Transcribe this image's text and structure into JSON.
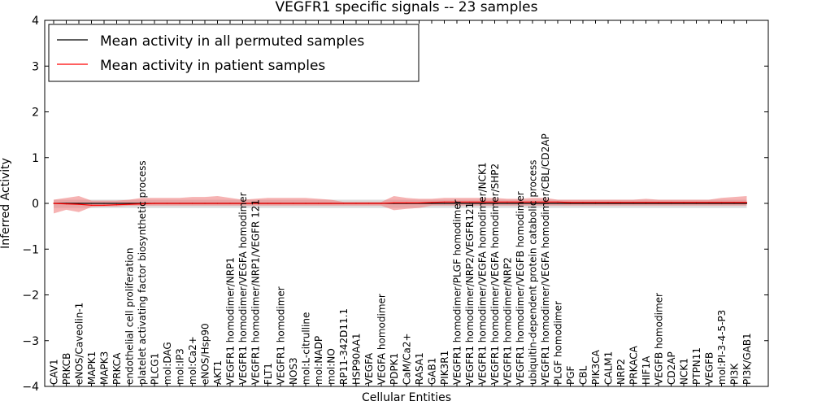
{
  "chart_data": {
    "type": "line",
    "title": "VEGFR1 specific signals -- 23 samples",
    "xlabel": "Cellular Entities",
    "ylabel": "Inferred Activity",
    "ylim": [
      -4,
      4
    ],
    "yticks": [
      -4,
      -3,
      -2,
      -1,
      0,
      1,
      2,
      3,
      4
    ],
    "grid": false,
    "legend_position": "top-left",
    "categories": [
      "CAV1",
      "PRKCB",
      "eNOS/Caveolin-1",
      "MAPK1",
      "MAPK3",
      "PRKCA",
      "endothelial cell proliferation",
      "platelet activating factor biosynthetic process",
      "PLCG1",
      "mol:DAG",
      "mol:IP3",
      "mol:Ca2+",
      "eNOS/Hsp90",
      "AKT1",
      "VEGFR1 homodimer/NRP1",
      "VEGFR1 homodimer/VEGFA homodimer",
      "VEGFR1 homodimer/NRP1/VEGFR 121",
      "FLT1",
      "VEGFR1 homodimer",
      "NOS3",
      "mol:L-citrulline",
      "mol:NADP",
      "mol:NO",
      "RP11-342D11.1",
      "HSP90AA1",
      "VEGFA",
      "VEGFA homodimer",
      "PDPK1",
      "CaM/Ca2+",
      "RASA1",
      "GAB1",
      "PIK3R1",
      "VEGFR1 homodimer/PLGF homodimer",
      "VEGFR1 homodimer/NRP2/VEGFR121",
      "VEGFR1 homodimer/VEGFA homodimer/NCK1",
      "VEGFR1 homodimer/VEGFA homodimer/SHP2",
      "VEGFR1 homodimer/NRP2",
      "VEGFR1 homodimer/VEGFB homodimer",
      "ubiquitin-dependent protein catabolic process",
      "VEGFR1 homodimer/VEGFA homodimer/CBL/CD2AP",
      "PLGF homodimer",
      "PGF",
      "CBL",
      "PIK3CA",
      "CALM1",
      "NRP2",
      "PRKACA",
      "HIF1A",
      "VEGFB homodimer",
      "CD2AP",
      "NCK1",
      "PTPN11",
      "VEGFB",
      "mol:PI-3-4-5-P3",
      "PI3K",
      "PI3K/GAB1"
    ],
    "series": [
      {
        "name": "Mean activity in all permuted samples",
        "color": "#000000",
        "band_color": "#bfbfbf",
        "values": [
          0,
          0,
          0,
          0,
          0,
          0,
          0,
          0,
          0,
          0,
          0,
          0,
          0,
          0,
          0,
          0,
          0,
          0,
          0,
          0,
          0,
          0,
          0,
          0,
          0,
          0,
          0,
          0,
          0,
          0,
          0,
          0,
          0,
          0,
          0,
          0,
          0,
          0,
          0,
          0,
          0,
          0,
          0,
          0,
          0,
          0,
          0,
          0,
          0,
          0,
          0,
          0,
          0,
          0,
          0,
          0
        ],
        "lower": [
          -0.1,
          -0.1,
          -0.1,
          -0.1,
          -0.1,
          -0.1,
          -0.1,
          -0.1,
          -0.1,
          -0.1,
          -0.1,
          -0.1,
          -0.1,
          -0.1,
          -0.1,
          -0.1,
          -0.1,
          -0.1,
          -0.1,
          -0.1,
          -0.1,
          -0.1,
          -0.1,
          -0.1,
          -0.1,
          -0.1,
          -0.1,
          -0.1,
          -0.1,
          -0.1,
          -0.1,
          -0.1,
          -0.1,
          -0.1,
          -0.1,
          -0.1,
          -0.1,
          -0.1,
          -0.1,
          -0.1,
          -0.1,
          -0.1,
          -0.1,
          -0.1,
          -0.1,
          -0.1,
          -0.1,
          -0.1,
          -0.1,
          -0.1,
          -0.1,
          -0.1,
          -0.1,
          -0.1,
          -0.1,
          -0.1
        ],
        "upper": [
          0.08,
          0.08,
          0.08,
          0.08,
          0.08,
          0.08,
          0.08,
          0.08,
          0.08,
          0.08,
          0.08,
          0.08,
          0.08,
          0.08,
          0.08,
          0.08,
          0.08,
          0.08,
          0.08,
          0.08,
          0.08,
          0.08,
          0.08,
          0.08,
          0.08,
          0.08,
          0.08,
          0.08,
          0.08,
          0.08,
          0.08,
          0.08,
          0.08,
          0.08,
          0.08,
          0.08,
          0.08,
          0.08,
          0.08,
          0.08,
          0.08,
          0.08,
          0.08,
          0.08,
          0.08,
          0.08,
          0.08,
          0.08,
          0.08,
          0.08,
          0.08,
          0.08,
          0.08,
          0.08,
          0.08,
          0.08
        ]
      },
      {
        "name": "Mean activity in patient samples",
        "color": "#ff0000",
        "band_color": "#f08080",
        "values": [
          0.0,
          -0.01,
          -0.02,
          -0.04,
          -0.04,
          -0.03,
          -0.02,
          -0.01,
          0.0,
          0.0,
          0.0,
          0.0,
          0.0,
          0.0,
          0.0,
          0.0,
          0.0,
          0.0,
          0.0,
          0.0,
          0.0,
          0.0,
          0.0,
          0.0,
          0.0,
          0.0,
          0.0,
          0.01,
          0.01,
          0.01,
          0.02,
          0.03,
          0.03,
          0.03,
          0.03,
          0.03,
          0.03,
          0.03,
          0.03,
          0.03,
          0.03,
          0.02,
          0.02,
          0.02,
          0.02,
          0.02,
          0.02,
          0.02,
          0.02,
          0.02,
          0.02,
          0.02,
          0.02,
          0.02,
          0.02,
          0.02
        ],
        "lower": [
          -0.22,
          -0.14,
          -0.19,
          -0.08,
          -0.07,
          -0.07,
          -0.05,
          -0.05,
          -0.05,
          -0.05,
          -0.05,
          -0.05,
          -0.05,
          -0.05,
          -0.05,
          -0.05,
          -0.05,
          -0.05,
          -0.05,
          -0.05,
          -0.05,
          -0.05,
          -0.05,
          -0.05,
          -0.05,
          -0.05,
          -0.05,
          -0.15,
          -0.12,
          -0.1,
          -0.05,
          -0.05,
          -0.05,
          -0.05,
          -0.05,
          -0.05,
          -0.05,
          -0.05,
          -0.05,
          -0.05,
          -0.05,
          -0.05,
          -0.05,
          -0.05,
          -0.05,
          -0.05,
          -0.05,
          -0.05,
          -0.05,
          -0.05,
          -0.05,
          -0.05,
          -0.05,
          -0.05,
          -0.05,
          -0.05
        ],
        "upper": [
          0.08,
          0.12,
          0.16,
          0.06,
          0.06,
          0.06,
          0.08,
          0.12,
          0.12,
          0.12,
          0.12,
          0.14,
          0.14,
          0.16,
          0.12,
          0.08,
          0.1,
          0.12,
          0.12,
          0.12,
          0.12,
          0.1,
          0.08,
          0.03,
          0.03,
          0.03,
          0.03,
          0.16,
          0.12,
          0.1,
          0.1,
          0.12,
          0.12,
          0.12,
          0.12,
          0.12,
          0.1,
          0.1,
          0.12,
          0.12,
          0.08,
          0.08,
          0.08,
          0.08,
          0.08,
          0.08,
          0.08,
          0.1,
          0.08,
          0.08,
          0.08,
          0.08,
          0.08,
          0.12,
          0.14,
          0.16
        ]
      }
    ]
  }
}
